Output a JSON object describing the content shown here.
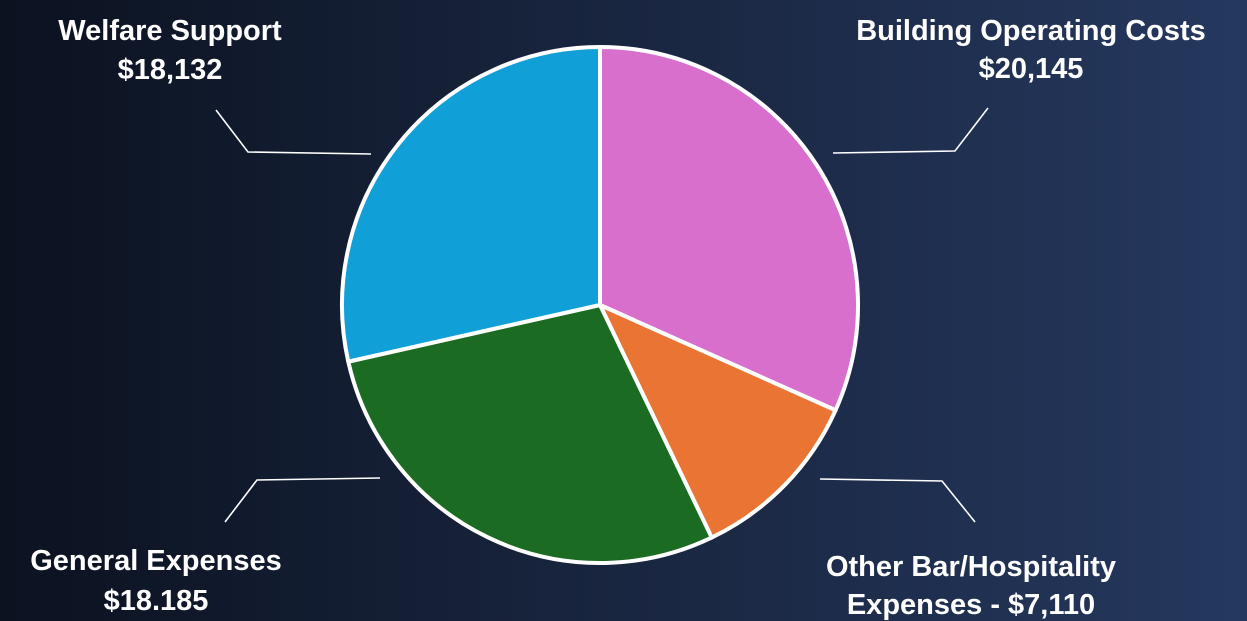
{
  "chart_data": {
    "type": "pie",
    "slices": [
      {
        "name": "Building Operating Costs",
        "value": 20145,
        "value_label": "$20,145",
        "color": "#d86fcd"
      },
      {
        "name": "Other Bar/Hospitality Expenses",
        "value": 7110,
        "value_label": "$7,110",
        "color": "#e97434"
      },
      {
        "name": "General Expenses",
        "value": 18185,
        "value_label": "$18.185",
        "color": "#1c6b22"
      },
      {
        "name": "Welfare Support",
        "value": 18132,
        "value_label": "$18,132",
        "color": "#119fd8"
      }
    ],
    "labels": [
      {
        "line1": "Building Operating Costs",
        "line2": "$20,145"
      },
      {
        "line1": "Other Bar/Hospitality",
        "line2": "Expenses - $7,110"
      },
      {
        "line1": "General Expenses",
        "line2": "$18.185"
      },
      {
        "line1": "Welfare Support",
        "line2": "$18,132"
      }
    ],
    "start_angle": "12 o'clock",
    "direction": "clockwise",
    "slice_border_color": "#ffffff"
  }
}
